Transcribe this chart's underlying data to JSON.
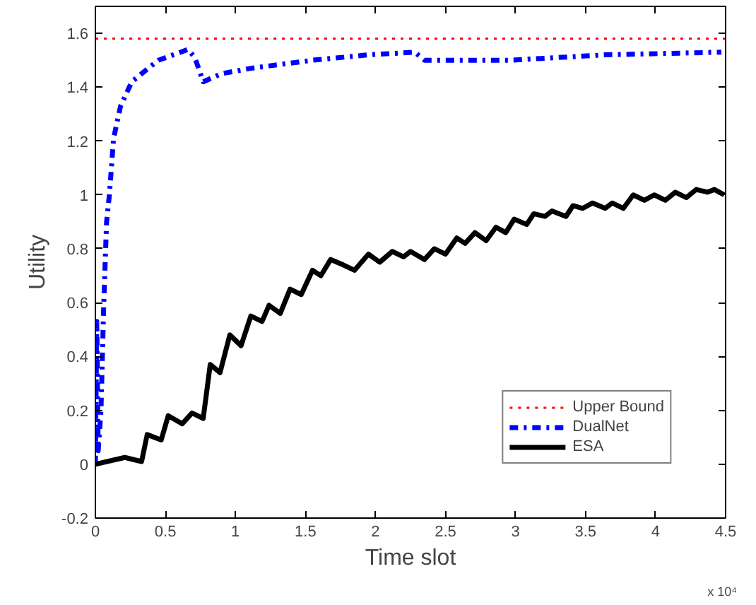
{
  "chart_data": {
    "type": "line",
    "xlabel": "Time slot",
    "ylabel": "Utility",
    "annotations": [
      "x 10⁴"
    ],
    "xlim": [
      0,
      4.5
    ],
    "xticks": [
      0,
      0.5,
      1,
      1.5,
      2,
      2.5,
      3,
      3.5,
      4,
      4.5
    ],
    "ylim": [
      -0.2,
      1.7
    ],
    "yticks": [
      -0.2,
      0,
      0.2,
      0.4,
      0.6,
      0.8,
      1,
      1.2,
      1.4,
      1.6
    ],
    "grid": false,
    "legend": "bottom right",
    "series": [
      {
        "name": "Upper Bound",
        "color": "#ff0000",
        "line_style": "dotted",
        "x": [
          0,
          4.5
        ],
        "values": [
          1.58,
          1.58
        ]
      },
      {
        "name": "DualNet",
        "color": "#0000ff",
        "line_style": "dashdot",
        "x": [
          0,
          0.01,
          0.02,
          0.04,
          0.06,
          0.08,
          0.1,
          0.13,
          0.18,
          0.26,
          0.33,
          0.45,
          0.61,
          0.66,
          0.71,
          0.77,
          0.9,
          1.11,
          1.55,
          1.95,
          2.28,
          2.35,
          2.96,
          3.64,
          4.47
        ],
        "values": [
          0,
          0.53,
          0.05,
          0.2,
          0.6,
          0.9,
          1.0,
          1.21,
          1.33,
          1.42,
          1.45,
          1.5,
          1.53,
          1.54,
          1.51,
          1.42,
          1.45,
          1.47,
          1.5,
          1.52,
          1.53,
          1.5,
          1.5,
          1.52,
          1.53
        ]
      },
      {
        "name": "ESA",
        "color": "#000000",
        "line_style": "solid",
        "x": [
          0,
          0.21,
          0.33,
          0.37,
          0.47,
          0.52,
          0.62,
          0.69,
          0.77,
          0.82,
          0.89,
          0.96,
          1.04,
          1.11,
          1.19,
          1.24,
          1.32,
          1.39,
          1.47,
          1.55,
          1.61,
          1.68,
          1.77,
          1.85,
          1.95,
          2.03,
          2.12,
          2.2,
          2.25,
          2.35,
          2.42,
          2.5,
          2.58,
          2.64,
          2.71,
          2.79,
          2.86,
          2.93,
          2.99,
          3.08,
          3.13,
          3.21,
          3.26,
          3.36,
          3.41,
          3.48,
          3.55,
          3.64,
          3.69,
          3.77,
          3.84,
          3.92,
          3.99,
          4.07,
          4.14,
          4.22,
          4.29,
          4.37,
          4.42,
          4.49
        ],
        "values": [
          0,
          0.025,
          0.01,
          0.11,
          0.09,
          0.18,
          0.15,
          0.19,
          0.17,
          0.37,
          0.34,
          0.48,
          0.44,
          0.55,
          0.53,
          0.59,
          0.56,
          0.65,
          0.63,
          0.72,
          0.7,
          0.76,
          0.74,
          0.72,
          0.78,
          0.75,
          0.79,
          0.77,
          0.79,
          0.76,
          0.8,
          0.78,
          0.84,
          0.82,
          0.86,
          0.83,
          0.88,
          0.86,
          0.91,
          0.89,
          0.93,
          0.92,
          0.94,
          0.92,
          0.96,
          0.95,
          0.97,
          0.95,
          0.97,
          0.95,
          1.0,
          0.98,
          1.0,
          0.98,
          1.01,
          0.99,
          1.02,
          1.01,
          1.02,
          1.0
        ]
      }
    ]
  }
}
